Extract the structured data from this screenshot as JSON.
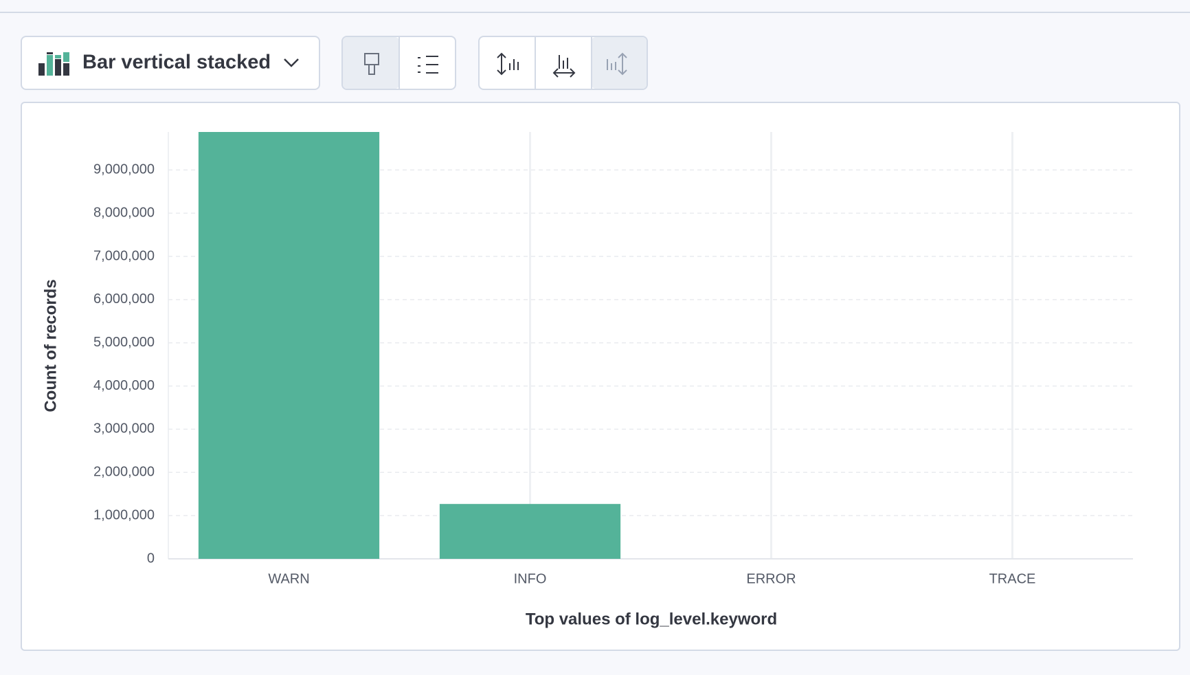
{
  "toolbar": {
    "chart_type_label": "Bar vertical stacked"
  },
  "chart_data": {
    "type": "bar",
    "x_label": "Top values of log_level.keyword",
    "y_label": "Count of records",
    "categories": [
      "WARN",
      "INFO",
      "ERROR",
      "TRACE"
    ],
    "values": [
      9880000,
      1270000,
      0,
      0
    ],
    "color": "#54b399",
    "ylim": [
      0,
      9880000
    ],
    "yticks": [
      0,
      {
        "value": 1000000,
        "label": "1,000,000"
      },
      {
        "value": 2000000,
        "label": "2,000,000"
      },
      {
        "value": 3000000,
        "label": "3,000,000"
      },
      {
        "value": 4000000,
        "label": "4,000,000"
      },
      {
        "value": 5000000,
        "label": "5,000,000"
      },
      {
        "value": 6000000,
        "label": "6,000,000"
      },
      {
        "value": 7000000,
        "label": "7,000,000"
      },
      {
        "value": 8000000,
        "label": "8,000,000"
      },
      {
        "value": 9000000,
        "label": "9,000,000"
      }
    ],
    "grid": true
  }
}
